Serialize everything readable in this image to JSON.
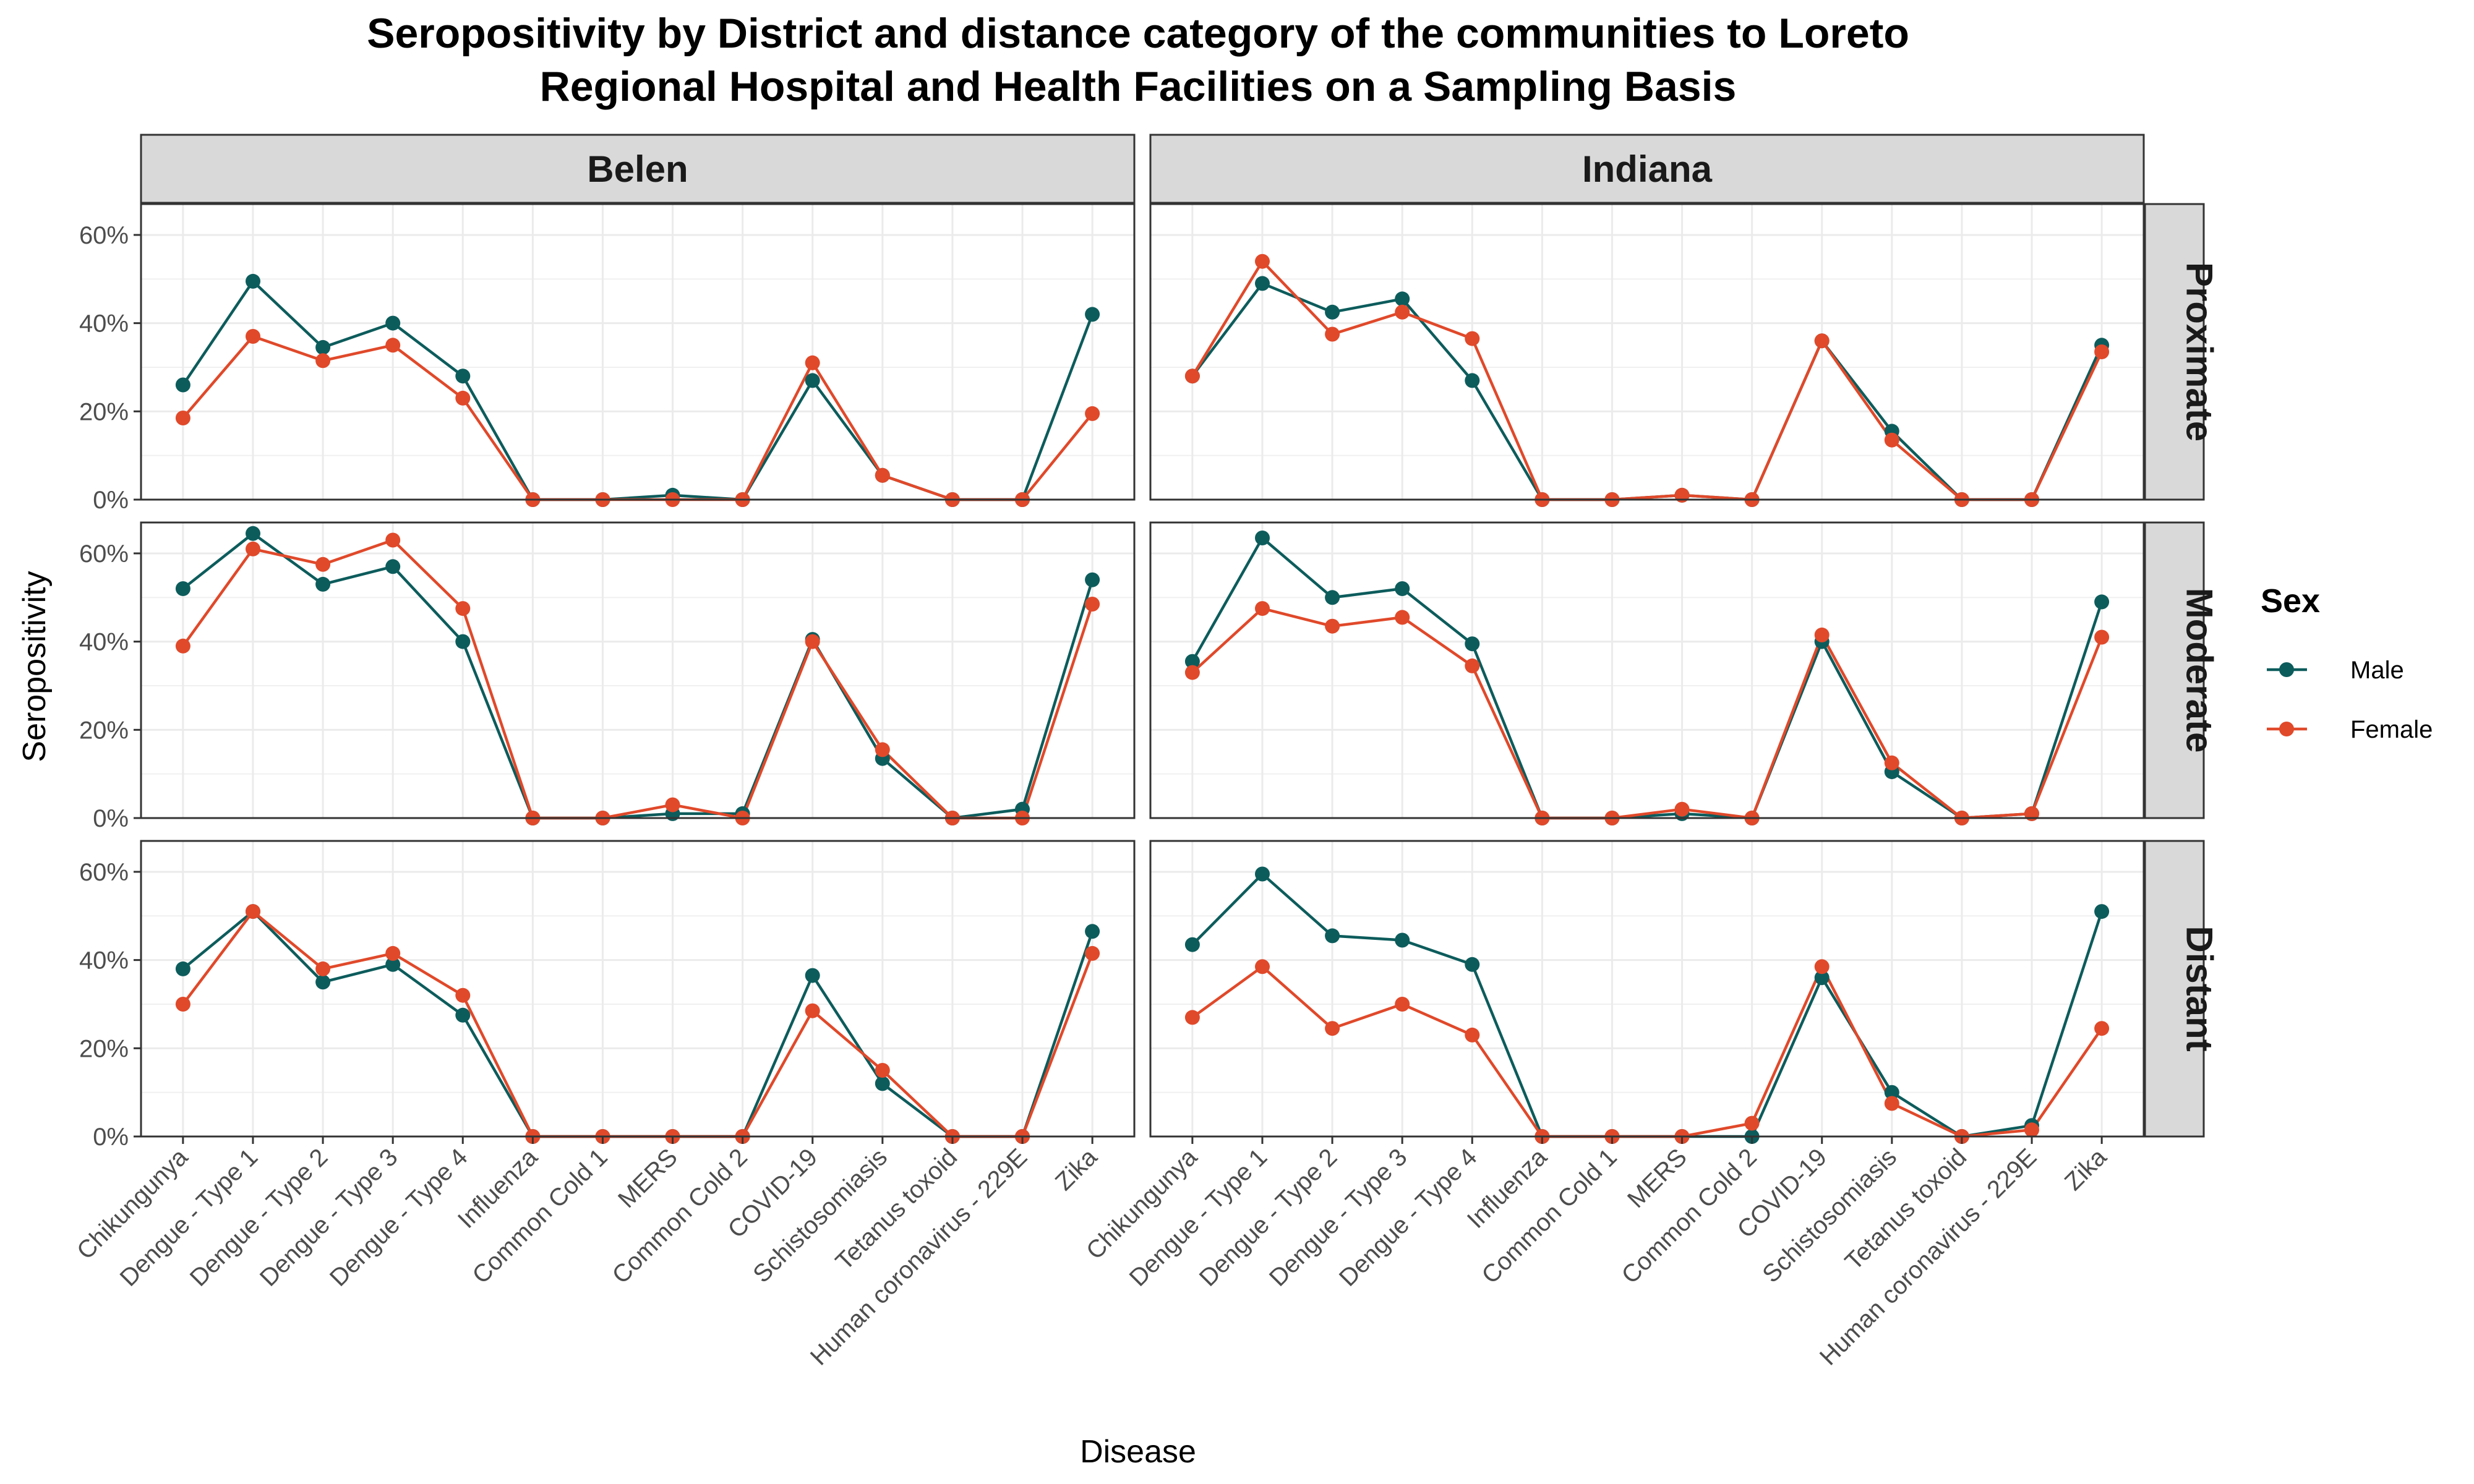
{
  "chart_data": {
    "type": "line",
    "title_lines": [
      "Seropositivity by District and distance category of the communities to Loreto",
      "Regional Hospital and Health Facilities on a Sampling Basis"
    ],
    "xlabel": "Disease",
    "ylabel": "Seropositivity",
    "ylim": [
      0,
      0.67
    ],
    "y_ticks": [
      0,
      0.2,
      0.4,
      0.6
    ],
    "y_tick_labels": [
      "0%",
      "20%",
      "40%",
      "60%"
    ],
    "grid": true,
    "legend_position": "right",
    "categories": [
      "Chikungunya",
      "Dengue - Type 1",
      "Dengue - Type 2",
      "Dengue - Type 3",
      "Dengue - Type 4",
      "Influenza",
      "Common Cold 1",
      "MERS",
      "Common Cold 2",
      "COVID-19",
      "Schistosomiasis",
      "Tetanus toxoid",
      "Human coronavirus - 229E",
      "Zika"
    ],
    "columns": [
      "Belen",
      "Indiana"
    ],
    "rows": [
      "Proximate",
      "Moderate",
      "Distant"
    ],
    "legend": {
      "title": "Sex",
      "entries": [
        {
          "name": "Male",
          "color": "#0d5c5c"
        },
        {
          "name": "Female",
          "color": "#e0492a"
        }
      ]
    },
    "panels": [
      {
        "column": "Belen",
        "row": "Proximate",
        "series": [
          {
            "name": "Male",
            "values": [
              0.26,
              0.495,
              0.345,
              0.4,
              0.28,
              0,
              0,
              0.01,
              0,
              0.27,
              0.055,
              0,
              0,
              0.42
            ]
          },
          {
            "name": "Female",
            "values": [
              0.185,
              0.37,
              0.315,
              0.35,
              0.23,
              0,
              0,
              0,
              0,
              0.31,
              0.055,
              0,
              0,
              0.195
            ]
          }
        ]
      },
      {
        "column": "Indiana",
        "row": "Proximate",
        "series": [
          {
            "name": "Male",
            "values": [
              0.28,
              0.49,
              0.425,
              0.455,
              0.27,
              0,
              0,
              0.01,
              0,
              0.36,
              0.155,
              0,
              0,
              0.35
            ]
          },
          {
            "name": "Female",
            "values": [
              0.28,
              0.54,
              0.375,
              0.425,
              0.365,
              0,
              0,
              0.01,
              0,
              0.36,
              0.135,
              0,
              0,
              0.335
            ]
          }
        ]
      },
      {
        "column": "Belen",
        "row": "Moderate",
        "series": [
          {
            "name": "Male",
            "values": [
              0.52,
              0.645,
              0.53,
              0.57,
              0.4,
              0,
              0,
              0.01,
              0.01,
              0.405,
              0.135,
              0,
              0.02,
              0.54
            ]
          },
          {
            "name": "Female",
            "values": [
              0.39,
              0.61,
              0.575,
              0.63,
              0.475,
              0,
              0,
              0.03,
              0,
              0.4,
              0.155,
              0,
              0,
              0.485
            ]
          }
        ]
      },
      {
        "column": "Indiana",
        "row": "Moderate",
        "series": [
          {
            "name": "Male",
            "values": [
              0.355,
              0.635,
              0.5,
              0.52,
              0.395,
              0,
              0,
              0.01,
              0,
              0.4,
              0.105,
              0,
              0.01,
              0.49
            ]
          },
          {
            "name": "Female",
            "values": [
              0.33,
              0.475,
              0.435,
              0.455,
              0.345,
              0,
              0,
              0.02,
              0,
              0.415,
              0.125,
              0,
              0.01,
              0.41
            ]
          }
        ]
      },
      {
        "column": "Belen",
        "row": "Distant",
        "series": [
          {
            "name": "Male",
            "values": [
              0.38,
              0.51,
              0.35,
              0.39,
              0.275,
              0,
              0,
              0,
              0,
              0.365,
              0.12,
              0,
              0,
              0.465
            ]
          },
          {
            "name": "Female",
            "values": [
              0.3,
              0.51,
              0.38,
              0.415,
              0.32,
              0,
              0,
              0,
              0,
              0.285,
              0.15,
              0,
              0,
              0.415
            ]
          }
        ]
      },
      {
        "column": "Indiana",
        "row": "Distant",
        "series": [
          {
            "name": "Male",
            "values": [
              0.435,
              0.595,
              0.455,
              0.445,
              0.39,
              0,
              0,
              0,
              0,
              0.36,
              0.1,
              0,
              0.025,
              0.51
            ]
          },
          {
            "name": "Female",
            "values": [
              0.27,
              0.385,
              0.245,
              0.3,
              0.23,
              0,
              0,
              0,
              0.03,
              0.385,
              0.075,
              0,
              0.015,
              0.245
            ]
          }
        ]
      }
    ]
  }
}
